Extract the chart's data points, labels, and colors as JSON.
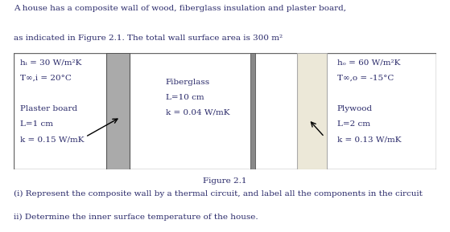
{
  "title_line1": "A house has a composite wall of wood, fiberglass insulation and plaster board,",
  "title_line2": "as indicated in Figure 2.1. The total wall surface area is 300 m²",
  "figure_label": "Figure 2.1",
  "question_i": "(i) Represent the composite wall by a thermal circuit, and label all the components in the circuit",
  "question_ii": "ii) Determine the inner surface temperature of the house.",
  "left_line1": "hᵢ = 30 W/m²K",
  "left_line2": "T∞,i = 20°C",
  "left_line3": "Plaster board",
  "left_line4": "L=1 cm",
  "left_line5": "k = 0.15 W/mK",
  "center_line1": "Fiberglass",
  "center_line2": "L=10 cm",
  "center_line3": "k = 0.04 W/mK",
  "right_line1": "hₒ = 60 W/m²K",
  "right_line2": "T∞,o = -15°C",
  "right_line3": "Plywood",
  "right_line4": "L=2 cm",
  "right_line5": "k = 0.13 W/mK",
  "box_edgecolor": "#555555",
  "plaster_color": "#aaaaaa",
  "plywood_color": "#ece8d8",
  "text_color": "#2a2a6a",
  "bg_color": "#ffffff",
  "font_size": 7.5
}
